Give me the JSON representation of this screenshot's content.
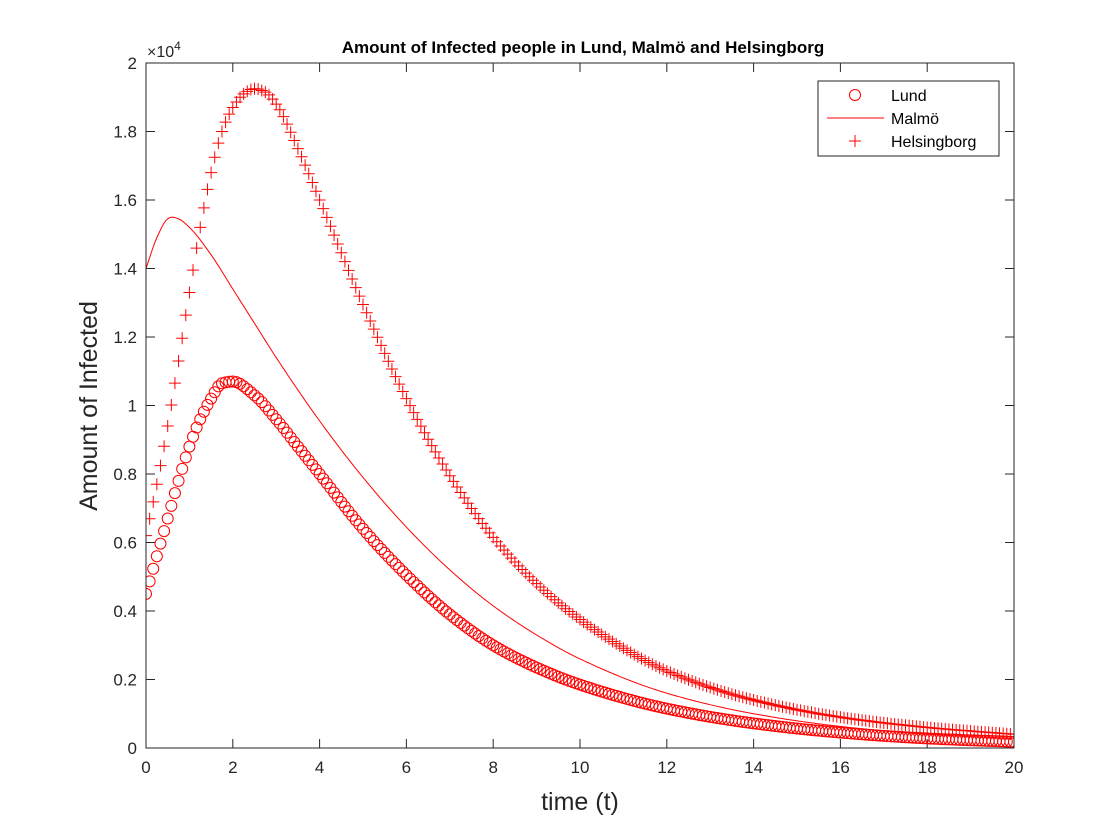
{
  "chart_data": {
    "type": "line",
    "title": "Amount of Infected people in Lund, Malmö and Helsingborg",
    "xlabel": "time (t)",
    "ylabel": "Amount of Infected",
    "y_exponent_base": "×10",
    "y_exponent_power": "4",
    "xlim": [
      0,
      20
    ],
    "ylim": [
      0,
      2
    ],
    "x_ticks": [
      "0",
      "2",
      "4",
      "6",
      "8",
      "10",
      "12",
      "14",
      "16",
      "18",
      "20"
    ],
    "y_ticks": [
      "0",
      "0.2",
      "0.4",
      "0.6",
      "0.8",
      "1",
      "1.2",
      "1.4",
      "1.6",
      "1.8",
      "2"
    ],
    "grid": false,
    "legend_position": "top-right",
    "color": "#ff0000",
    "series": [
      {
        "name": "Lund",
        "marker": "circle",
        "x": [
          0,
          0.25,
          0.5,
          0.75,
          1,
          1.25,
          1.5,
          1.75,
          2,
          2.5,
          3,
          3.5,
          4,
          5,
          6,
          7,
          8,
          9,
          10,
          12,
          14,
          16,
          18,
          20
        ],
        "y": [
          0.45,
          0.56,
          0.67,
          0.78,
          0.88,
          0.96,
          1.02,
          1.065,
          1.07,
          1.03,
          0.96,
          0.88,
          0.8,
          0.64,
          0.505,
          0.39,
          0.3,
          0.235,
          0.185,
          0.115,
          0.072,
          0.045,
          0.028,
          0.018
        ]
      },
      {
        "name": "Malmö",
        "marker": "none",
        "x": [
          0,
          0.25,
          0.5,
          0.6,
          0.75,
          1,
          1.5,
          2,
          2.5,
          3,
          4,
          5,
          6,
          7,
          8,
          9,
          10,
          12,
          14,
          16,
          18,
          20
        ],
        "y": [
          1.4,
          1.49,
          1.545,
          1.55,
          1.545,
          1.52,
          1.44,
          1.34,
          1.24,
          1.14,
          0.955,
          0.79,
          0.645,
          0.52,
          0.415,
          0.33,
          0.26,
          0.16,
          0.1,
          0.063,
          0.04,
          0.028
        ]
      },
      {
        "name": "Helsingborg",
        "marker": "plus",
        "x": [
          0,
          0.25,
          0.5,
          0.75,
          1,
          1.25,
          1.5,
          1.75,
          2,
          2.25,
          2.5,
          2.75,
          3,
          3.5,
          4,
          5,
          6,
          7,
          8,
          9,
          10,
          12,
          14,
          16,
          18,
          20
        ],
        "y": [
          0.62,
          0.77,
          0.94,
          1.13,
          1.33,
          1.52,
          1.68,
          1.8,
          1.87,
          1.91,
          1.925,
          1.915,
          1.88,
          1.75,
          1.6,
          1.295,
          1.02,
          0.795,
          0.615,
          0.48,
          0.375,
          0.225,
          0.14,
          0.09,
          0.06,
          0.04
        ]
      }
    ]
  }
}
